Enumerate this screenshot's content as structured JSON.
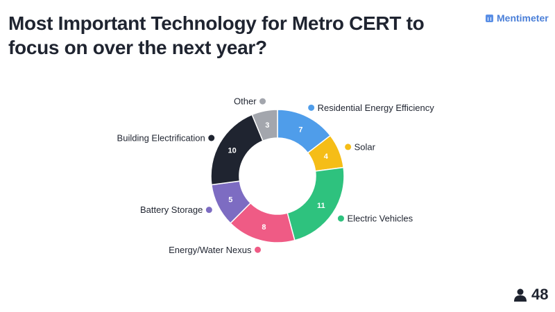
{
  "header": {
    "title": "Most Important Technology for Metro CERT to focus on over the next year?",
    "brand": "Mentimeter"
  },
  "footer": {
    "respondents": "48",
    "respondents_icon": "person-icon"
  },
  "colors": {
    "Residential Energy Efficiency": "#4f9dea",
    "Solar": "#f5bd17",
    "Electric Vehicles": "#2ec27e",
    "Energy/Water Nexus": "#ef5b85",
    "Battery Storage": "#7d6cc2",
    "Building Electrification": "#1f2430",
    "Other": "#a3a6ad"
  },
  "chart_data": {
    "type": "pie",
    "donut": true,
    "categories": [
      "Residential Energy Efficiency",
      "Solar",
      "Electric Vehicles",
      "Energy/Water Nexus",
      "Battery Storage",
      "Building Electrification",
      "Other"
    ],
    "values": [
      7,
      4,
      11,
      8,
      5,
      10,
      3
    ]
  }
}
